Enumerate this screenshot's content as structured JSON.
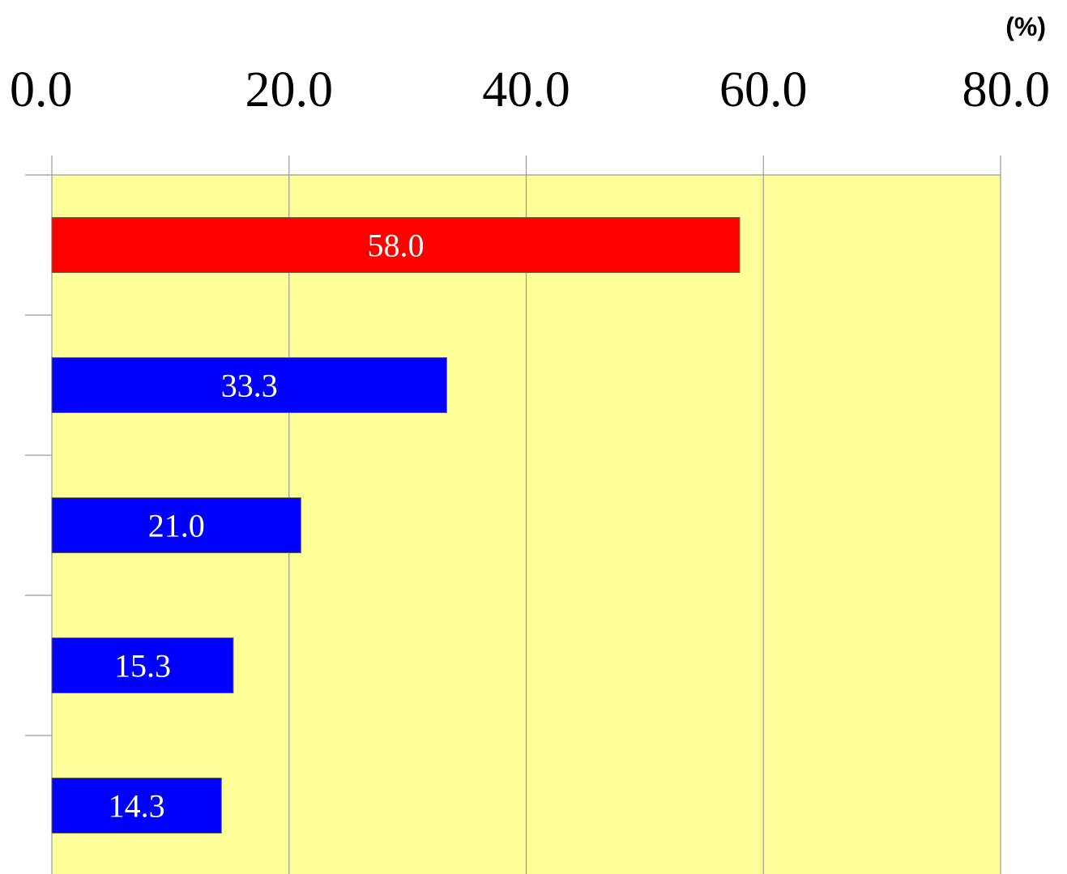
{
  "chart_data": {
    "type": "bar",
    "orientation": "horizontal",
    "unit_label": "(%)",
    "xlim": [
      0,
      80
    ],
    "x_ticks": [
      0,
      20,
      40,
      60,
      80
    ],
    "x_tick_labels": [
      "0.0",
      "20.0",
      "40.0",
      "60.0",
      "80.0"
    ],
    "axis_position": "top",
    "grid": true,
    "legend": "none",
    "categories": [
      "",
      "",
      "",
      "",
      ""
    ],
    "values": [
      58.0,
      33.3,
      21.0,
      15.3,
      14.3
    ],
    "data_labels": [
      "58.0",
      "33.3",
      "21.0",
      "15.3",
      "14.3"
    ],
    "bar_colors": [
      "#ff0000",
      "#0000ff",
      "#0000ff",
      "#0000ff",
      "#0000ff"
    ],
    "plot_background": "#ffff99",
    "grid_color": "#9a9a9a",
    "label_color": "#ffffff"
  }
}
